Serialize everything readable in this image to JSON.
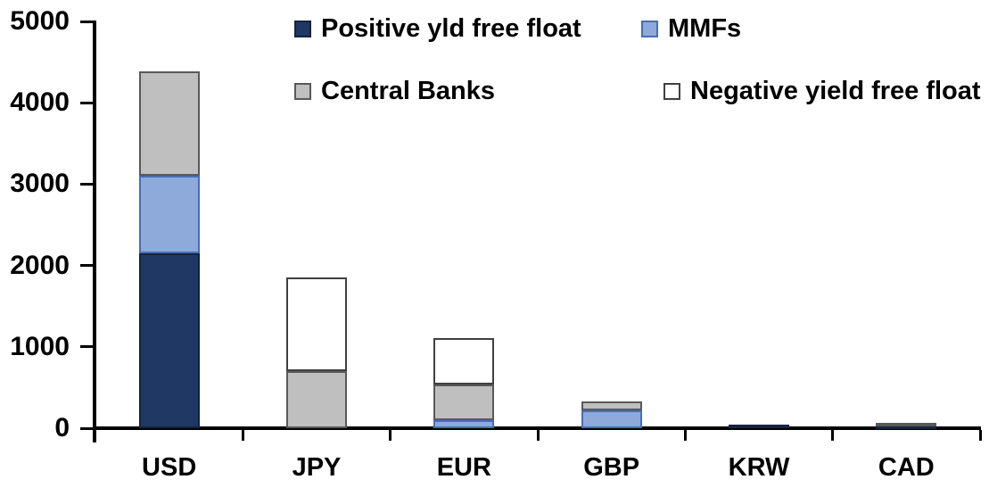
{
  "chart_data": {
    "type": "bar",
    "stacked": true,
    "title": "",
    "xlabel": "",
    "ylabel": "",
    "categories": [
      "USD",
      "JPY",
      "EUR",
      "GBP",
      "KRW",
      "CAD"
    ],
    "series": [
      {
        "name": "Positive yld free float",
        "color": "#1F3864",
        "border_color": "#14233F",
        "values": [
          2150,
          0,
          0,
          0,
          40,
          30
        ]
      },
      {
        "name": "MMFs",
        "color": "#8EAADB",
        "border_color": "#4A6DB4",
        "values": [
          950,
          0,
          100,
          215,
          0,
          0
        ]
      },
      {
        "name": "Central Banks",
        "color": "#BFBFBF",
        "border_color": "#595959",
        "values": [
          1290,
          700,
          440,
          110,
          0,
          40
        ]
      },
      {
        "name": "Negative yield free float",
        "color": "#FFFFFF",
        "border_color": "#404040",
        "values": [
          0,
          1150,
          570,
          0,
          0,
          0
        ]
      }
    ],
    "stack_totals": [
      4390,
      1850,
      1110,
      325,
      40,
      70
    ],
    "ylim": [
      0,
      5000
    ],
    "ytick_step": 1000,
    "ytick_labels": [
      "0",
      "1000",
      "2000",
      "3000",
      "4000",
      "5000"
    ],
    "grid": false,
    "legend_position": "top-two-rows",
    "axis_color": "#000000",
    "text_color": "#000000"
  }
}
